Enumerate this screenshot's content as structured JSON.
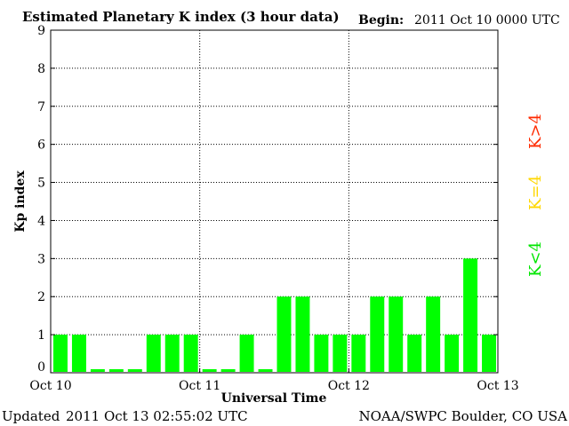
{
  "chart_data": {
    "type": "bar",
    "title": "Estimated Planetary K index (3 hour data)",
    "begin_label": "Begin:",
    "begin_value": "2011 Oct 10 0000 UTC",
    "xlabel": "Universal Time",
    "ylabel": "Kp index",
    "ylim": [
      0,
      9
    ],
    "yticks": [
      "0",
      "1",
      "2",
      "3",
      "4",
      "5",
      "6",
      "7",
      "8",
      "9"
    ],
    "xticks": [
      "Oct 10",
      "Oct 11",
      "Oct 12",
      "Oct 13"
    ],
    "values": [
      1,
      1,
      0,
      0,
      0,
      1,
      1,
      1,
      0,
      0,
      1,
      0,
      2,
      2,
      1,
      1,
      1,
      2,
      2,
      1,
      2,
      1,
      3,
      1
    ],
    "grid": true,
    "bar_color": "#00ff00",
    "legend": [
      {
        "label": "K<4",
        "color": "#00e600"
      },
      {
        "label": "K=4",
        "color": "#ffd700"
      },
      {
        "label": "K>4",
        "color": "#ff2a00"
      }
    ],
    "legend_position": "right"
  },
  "footer": {
    "updated_label": "Updated",
    "updated_value": "2011 Oct 13 02:55:02 UTC",
    "source": "NOAA/SWPC Boulder, CO USA"
  }
}
